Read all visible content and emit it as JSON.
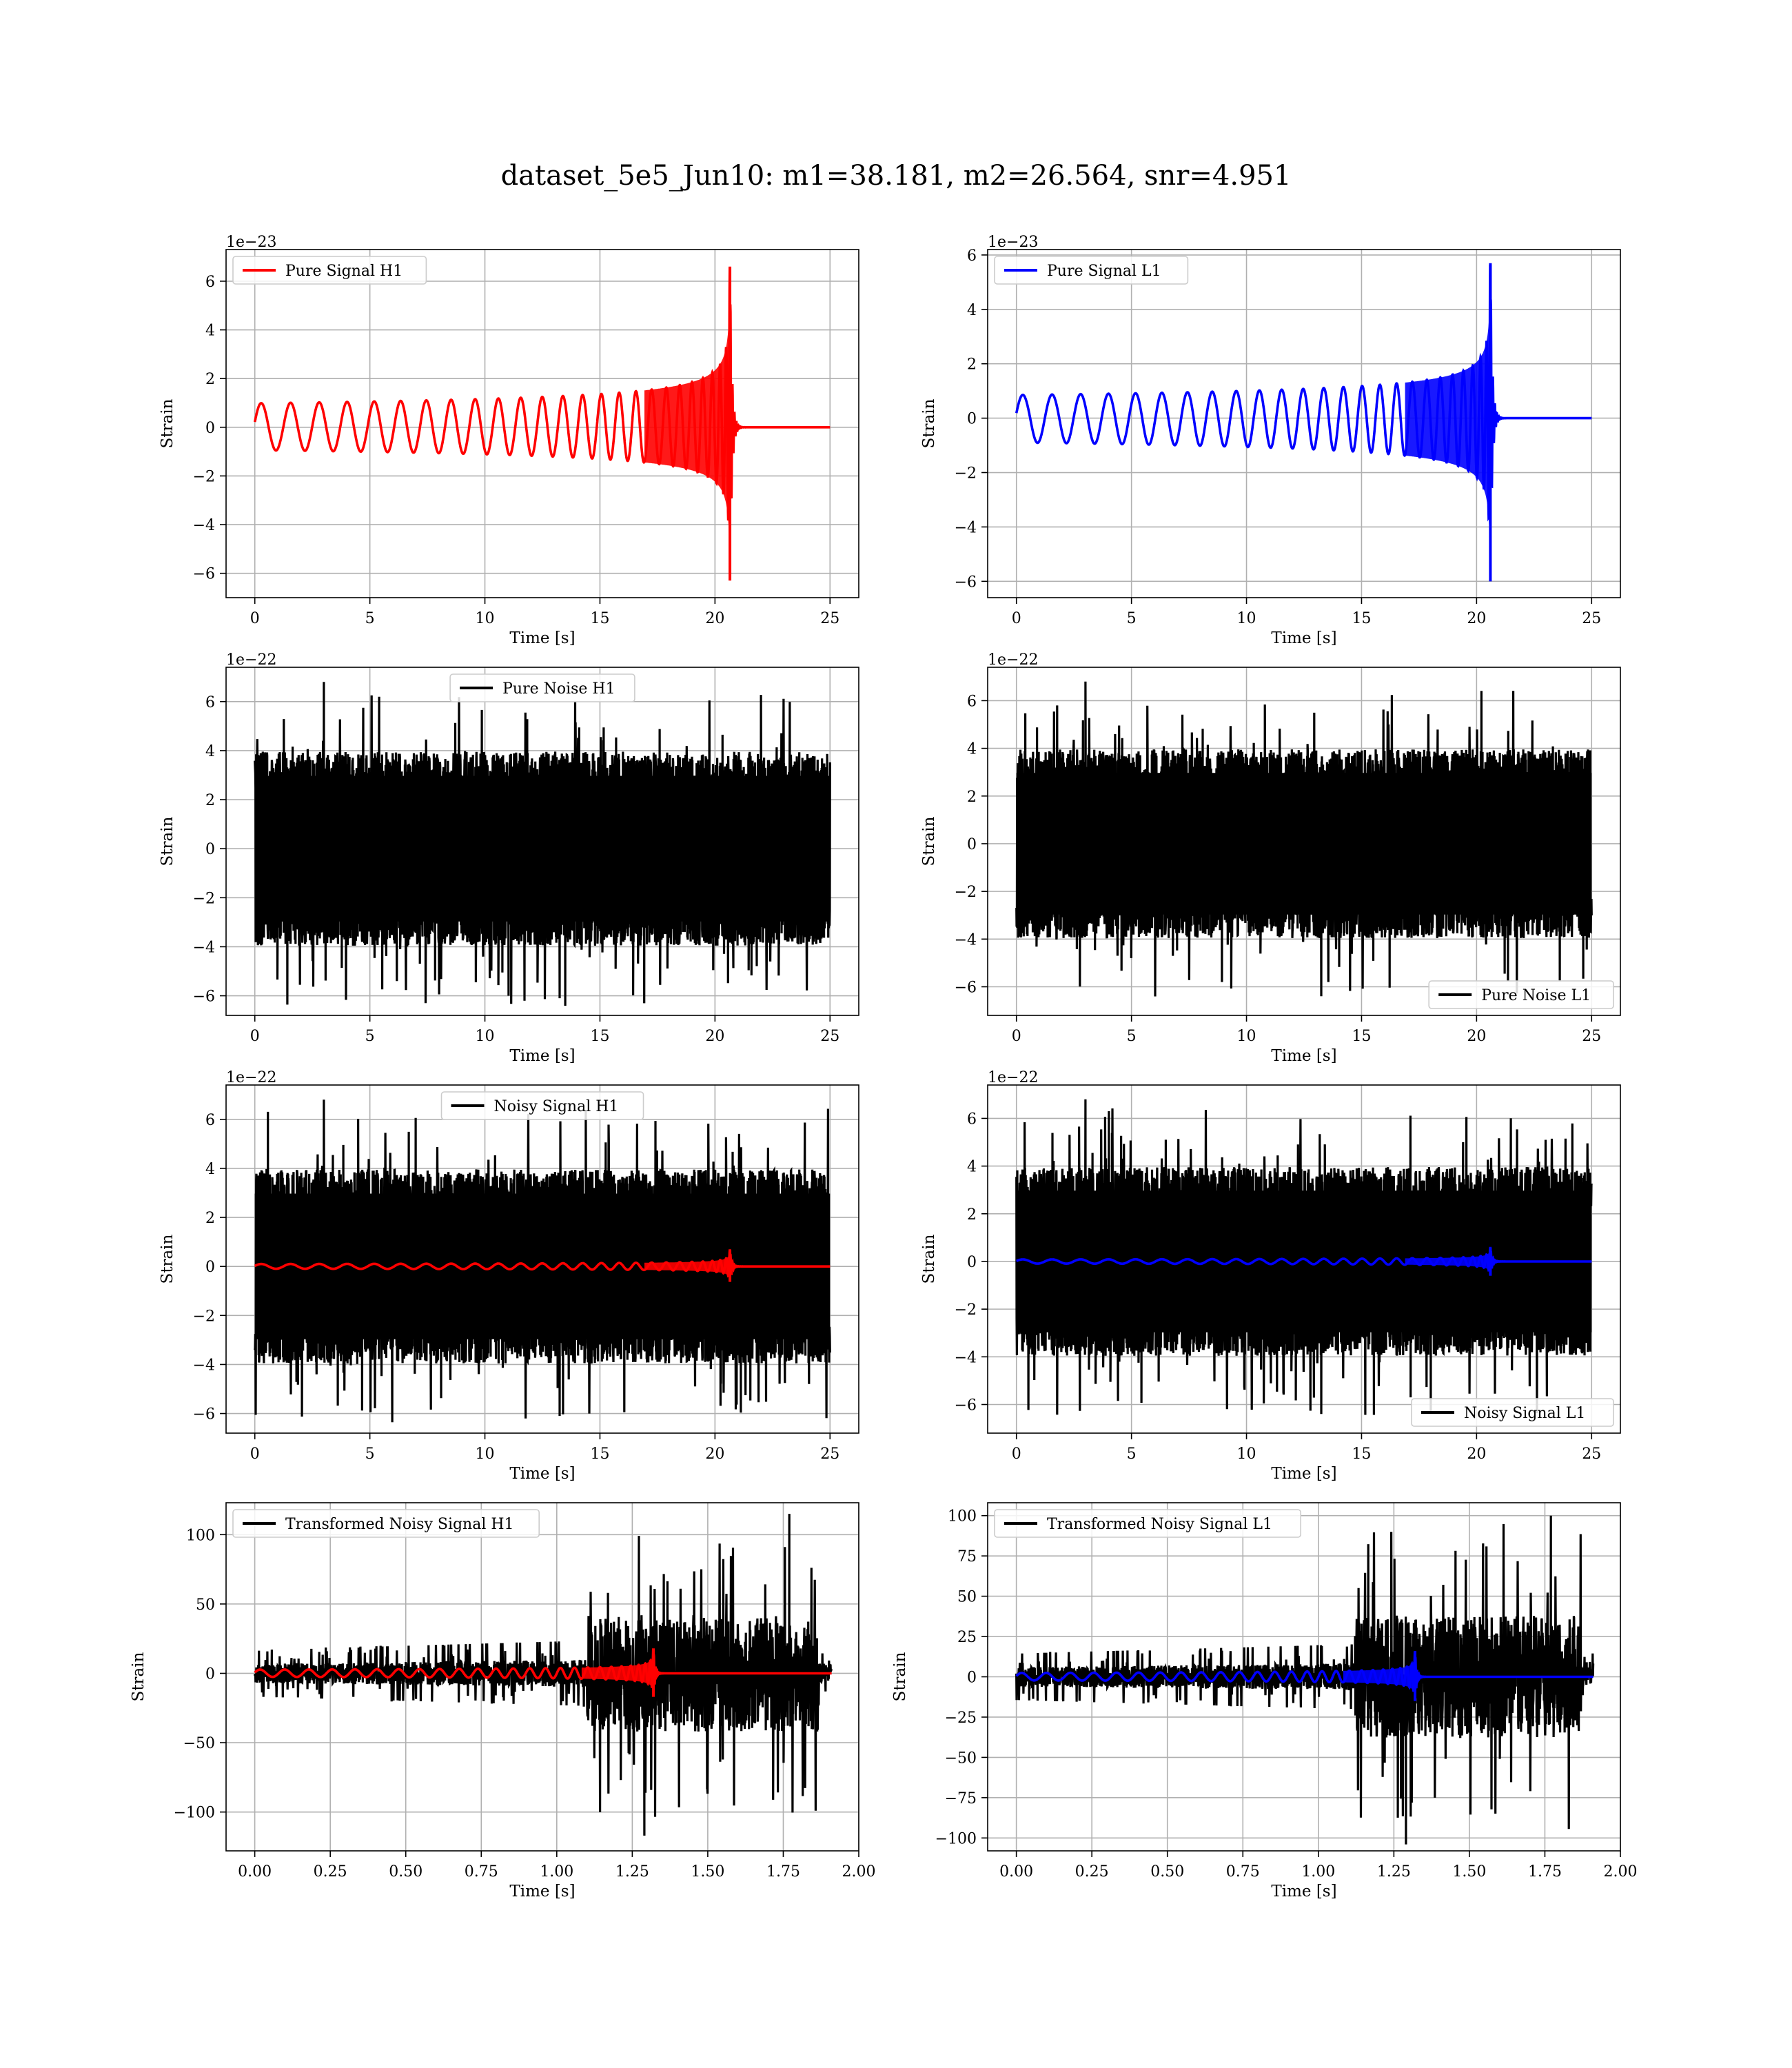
{
  "figure": {
    "title": "dataset_5e5_Jun10: m1=38.181, m2=26.564, snr=4.951"
  },
  "chart_data": [
    {
      "type": "line",
      "xlabel": "Time [s]",
      "ylabel": "Strain",
      "xlim": [
        -1.25,
        26.25
      ],
      "ylim": [
        -7.0,
        7.3
      ],
      "offset_text": "1e−23",
      "xticks": [
        0,
        5,
        10,
        15,
        20,
        25
      ],
      "xtick_labels": [
        "0",
        "5",
        "10",
        "15",
        "20",
        "25"
      ],
      "yticks": [
        -6,
        -4,
        -2,
        0,
        2,
        4,
        6
      ],
      "ytick_labels": [
        "−6",
        "−4",
        "−2",
        "0",
        "2",
        "4",
        "6"
      ],
      "grid": true,
      "legend_position": "upper left",
      "legend": [
        {
          "label": "Pure Signal H1",
          "color": "#ff0000"
        }
      ],
      "series": [
        {
          "name": "Pure Signal H1",
          "color": "#ff0000",
          "kind": "chirp",
          "t_start": 0,
          "t_merge": 20.65,
          "t_end": 25,
          "peak_pos": 6.6,
          "peak_neg": -6.3
        }
      ]
    },
    {
      "type": "line",
      "xlabel": "Time [s]",
      "ylabel": "Strain",
      "xlim": [
        -1.25,
        26.25
      ],
      "ylim": [
        -6.6,
        6.2
      ],
      "offset_text": "1e−23",
      "xticks": [
        0,
        5,
        10,
        15,
        20,
        25
      ],
      "xtick_labels": [
        "0",
        "5",
        "10",
        "15",
        "20",
        "25"
      ],
      "yticks": [
        -6,
        -4,
        -2,
        0,
        2,
        4,
        6
      ],
      "ytick_labels": [
        "−6",
        "−4",
        "−2",
        "0",
        "2",
        "4",
        "6"
      ],
      "grid": true,
      "legend_position": "upper left",
      "legend": [
        {
          "label": "Pure Signal L1",
          "color": "#0000ff"
        }
      ],
      "series": [
        {
          "name": "Pure Signal L1",
          "color": "#0000ff",
          "kind": "chirp",
          "t_start": 0,
          "t_merge": 20.6,
          "t_end": 25,
          "peak_pos": 5.7,
          "peak_neg": -6.0
        }
      ]
    },
    {
      "type": "line",
      "xlabel": "Time [s]",
      "ylabel": "Strain",
      "xlim": [
        -1.25,
        26.25
      ],
      "ylim": [
        -6.8,
        7.4
      ],
      "offset_text": "1e−22",
      "xticks": [
        0,
        5,
        10,
        15,
        20,
        25
      ],
      "xtick_labels": [
        "0",
        "5",
        "10",
        "15",
        "20",
        "25"
      ],
      "yticks": [
        -6,
        -4,
        -2,
        0,
        2,
        4,
        6
      ],
      "ytick_labels": [
        "−6",
        "−4",
        "−2",
        "0",
        "2",
        "4",
        "6"
      ],
      "grid": true,
      "legend_position": "upper center",
      "legend": [
        {
          "label": "Pure Noise H1",
          "color": "#000000"
        }
      ],
      "series": [
        {
          "name": "Pure Noise H1",
          "color": "#000000",
          "kind": "noise",
          "t_start": 0,
          "t_end": 25,
          "band_pos": 3.3,
          "band_neg": -3.3,
          "max": 6.8,
          "min": -6.1
        }
      ]
    },
    {
      "type": "line",
      "xlabel": "Time [s]",
      "ylabel": "Strain",
      "xlim": [
        -1.25,
        26.25
      ],
      "ylim": [
        -7.2,
        7.4
      ],
      "offset_text": "1e−22",
      "xticks": [
        0,
        5,
        10,
        15,
        20,
        25
      ],
      "xtick_labels": [
        "0",
        "5",
        "10",
        "15",
        "20",
        "25"
      ],
      "yticks": [
        -6,
        -4,
        -2,
        0,
        2,
        4,
        6
      ],
      "ytick_labels": [
        "−6",
        "−4",
        "−2",
        "0",
        "2",
        "4",
        "6"
      ],
      "grid": true,
      "legend_position": "lower right",
      "legend": [
        {
          "label": "Pure Noise L1",
          "color": "#000000"
        }
      ],
      "series": [
        {
          "name": "Pure Noise L1",
          "color": "#000000",
          "kind": "noise",
          "t_start": 0,
          "t_end": 25,
          "band_pos": 3.3,
          "band_neg": -3.3,
          "max": 6.8,
          "min": -6.4
        }
      ]
    },
    {
      "type": "line",
      "xlabel": "Time [s]",
      "ylabel": "Strain",
      "xlim": [
        -1.25,
        26.25
      ],
      "ylim": [
        -6.8,
        7.4
      ],
      "offset_text": "1e−22",
      "xticks": [
        0,
        5,
        10,
        15,
        20,
        25
      ],
      "xtick_labels": [
        "0",
        "5",
        "10",
        "15",
        "20",
        "25"
      ],
      "yticks": [
        -6,
        -4,
        -2,
        0,
        2,
        4,
        6
      ],
      "ytick_labels": [
        "−6",
        "−4",
        "−2",
        "0",
        "2",
        "4",
        "6"
      ],
      "grid": true,
      "legend_position": "upper center",
      "legend": [
        {
          "label": "Noisy Signal H1",
          "color": "#000000"
        }
      ],
      "series": [
        {
          "name": "Noisy Signal H1",
          "color": "#000000",
          "kind": "noise",
          "t_start": 0,
          "t_end": 25,
          "band_pos": 3.3,
          "band_neg": -3.3,
          "max": 6.8,
          "min": -6.1
        },
        {
          "color": "#ff0000",
          "kind": "chirp",
          "t_start": 0,
          "t_merge": 20.65,
          "t_end": 25,
          "peak_pos": 0.66,
          "peak_neg": -0.63
        }
      ]
    },
    {
      "type": "line",
      "xlabel": "Time [s]",
      "ylabel": "Strain",
      "xlim": [
        -1.25,
        26.25
      ],
      "ylim": [
        -7.2,
        7.4
      ],
      "offset_text": "1e−22",
      "xticks": [
        0,
        5,
        10,
        15,
        20,
        25
      ],
      "xtick_labels": [
        "0",
        "5",
        "10",
        "15",
        "20",
        "25"
      ],
      "yticks": [
        -6,
        -4,
        -2,
        0,
        2,
        4,
        6
      ],
      "ytick_labels": [
        "−6",
        "−4",
        "−2",
        "0",
        "2",
        "4",
        "6"
      ],
      "grid": true,
      "legend_position": "lower right",
      "legend": [
        {
          "label": "Noisy Signal L1",
          "color": "#000000"
        }
      ],
      "series": [
        {
          "name": "Noisy Signal L1",
          "color": "#000000",
          "kind": "noise",
          "t_start": 0,
          "t_end": 25,
          "band_pos": 3.3,
          "band_neg": -3.3,
          "max": 6.8,
          "min": -6.4
        },
        {
          "color": "#0000ff",
          "kind": "chirp",
          "t_start": 0,
          "t_merge": 20.6,
          "t_end": 25,
          "peak_pos": 0.57,
          "peak_neg": -0.6
        }
      ]
    },
    {
      "type": "line",
      "xlabel": "Time [s]",
      "ylabel": "Strain",
      "xlim": [
        -0.095,
        2.0
      ],
      "ylim": [
        -128,
        123
      ],
      "xticks": [
        0,
        0.25,
        0.5,
        0.75,
        1.0,
        1.25,
        1.5,
        1.75,
        2.0
      ],
      "xtick_labels": [
        "0.00",
        "0.25",
        "0.50",
        "0.75",
        "1.00",
        "1.25",
        "1.50",
        "1.75",
        "2.00"
      ],
      "yticks": [
        -100,
        -50,
        0,
        50,
        100
      ],
      "ytick_labels": [
        "−100",
        "−50",
        "0",
        "50",
        "100"
      ],
      "grid": true,
      "legend_position": "upper left",
      "legend": [
        {
          "label": "Transformed Noisy Signal H1",
          "color": "#000000"
        }
      ],
      "series": [
        {
          "name": "Transformed Noisy Signal H1",
          "color": "#000000",
          "kind": "whitened",
          "t_start": 0,
          "t_rise": 1.1,
          "t_drop": 1.87,
          "t_end": 1.91,
          "low_amp": 7,
          "high_amp": 42,
          "max": 115,
          "min": -117
        },
        {
          "color": "#ff0000",
          "kind": "chirp",
          "t_start": 0,
          "t_merge": 1.32,
          "t_end": 1.91,
          "peak_pos": 18,
          "peak_neg": -17
        }
      ]
    },
    {
      "type": "line",
      "xlabel": "Time [s]",
      "ylabel": "Strain",
      "xlim": [
        -0.095,
        2.0
      ],
      "ylim": [
        -108,
        108
      ],
      "xticks": [
        0,
        0.25,
        0.5,
        0.75,
        1.0,
        1.25,
        1.5,
        1.75,
        2.0
      ],
      "xtick_labels": [
        "0.00",
        "0.25",
        "0.50",
        "0.75",
        "1.00",
        "1.25",
        "1.50",
        "1.75",
        "2.00"
      ],
      "yticks": [
        -100,
        -75,
        -50,
        -25,
        0,
        25,
        50,
        75,
        100
      ],
      "ytick_labels": [
        "−100",
        "−75",
        "−50",
        "−25",
        "0",
        "25",
        "50",
        "75",
        "100"
      ],
      "grid": true,
      "legend_position": "upper left",
      "legend": [
        {
          "label": "Transformed Noisy Signal L1",
          "color": "#000000"
        }
      ],
      "series": [
        {
          "name": "Transformed Noisy Signal L1",
          "color": "#000000",
          "kind": "whitened",
          "t_start": 0,
          "t_rise": 1.12,
          "t_drop": 1.87,
          "t_end": 1.91,
          "low_amp": 6,
          "high_amp": 38,
          "max": 100,
          "min": -104
        },
        {
          "color": "#0000ff",
          "kind": "chirp",
          "t_start": 0,
          "t_merge": 1.32,
          "t_end": 1.91,
          "peak_pos": 16,
          "peak_neg": -15
        }
      ]
    }
  ]
}
